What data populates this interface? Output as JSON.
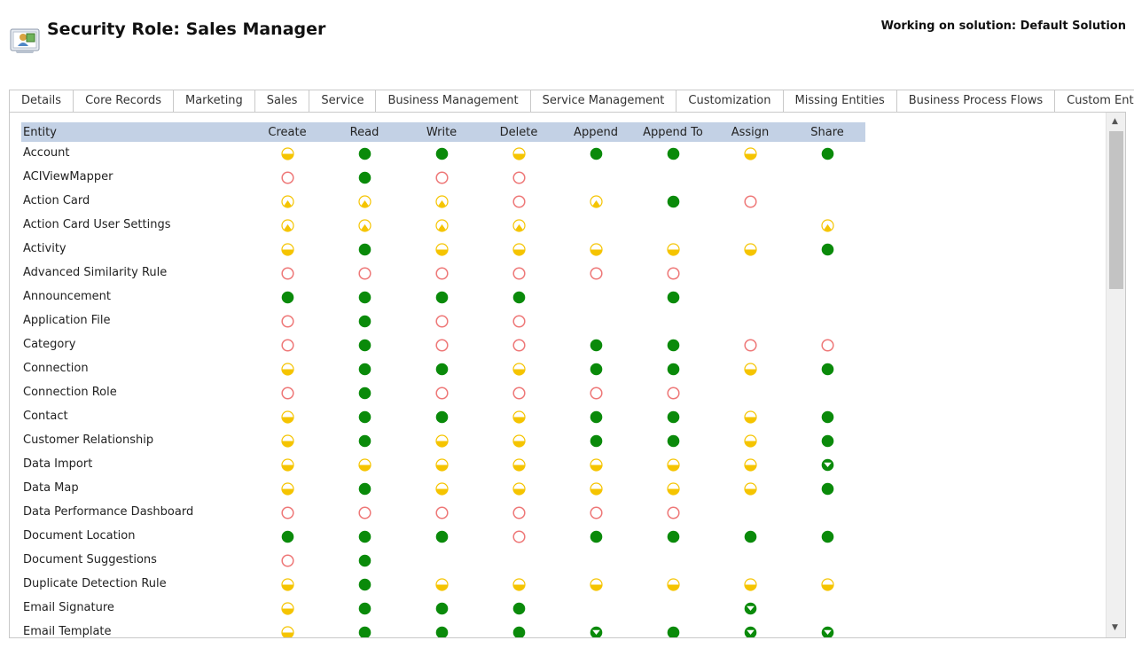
{
  "header": {
    "title": "Security Role: Sales Manager",
    "solution": "Working on solution: Default Solution"
  },
  "tabs": [
    {
      "label": "Details",
      "active": false
    },
    {
      "label": "Core Records",
      "active": true
    },
    {
      "label": "Marketing",
      "active": false
    },
    {
      "label": "Sales",
      "active": false
    },
    {
      "label": "Service",
      "active": false
    },
    {
      "label": "Business Management",
      "active": false
    },
    {
      "label": "Service Management",
      "active": false
    },
    {
      "label": "Customization",
      "active": false
    },
    {
      "label": "Missing Entities",
      "active": false
    },
    {
      "label": "Business Process Flows",
      "active": false
    },
    {
      "label": "Custom Entities",
      "active": false
    }
  ],
  "grid": {
    "columns": [
      "Entity",
      "Create",
      "Read",
      "Write",
      "Delete",
      "Append",
      "Append To",
      "Assign",
      "Share"
    ],
    "legend_colors": {
      "organization": "#0a8a0a",
      "parent_child": "#0a8a0a",
      "business_unit": "#f5c400",
      "user": "#f5c400",
      "none": "#ee7777"
    },
    "rows": [
      {
        "entity": "Account",
        "levels": [
          "business_unit",
          "organization",
          "organization",
          "business_unit",
          "organization",
          "organization",
          "business_unit",
          "organization"
        ]
      },
      {
        "entity": "ACIViewMapper",
        "levels": [
          "none",
          "organization",
          "none",
          "none",
          "",
          "",
          "",
          ""
        ]
      },
      {
        "entity": "Action Card",
        "levels": [
          "user",
          "user",
          "user",
          "none",
          "user",
          "organization",
          "none",
          ""
        ]
      },
      {
        "entity": "Action Card User Settings",
        "levels": [
          "user",
          "user",
          "user",
          "user",
          "",
          "",
          "",
          "user"
        ]
      },
      {
        "entity": "Activity",
        "levels": [
          "business_unit",
          "organization",
          "business_unit",
          "business_unit",
          "business_unit",
          "business_unit",
          "business_unit",
          "organization"
        ]
      },
      {
        "entity": "Advanced Similarity Rule",
        "levels": [
          "none",
          "none",
          "none",
          "none",
          "none",
          "none",
          "",
          ""
        ]
      },
      {
        "entity": "Announcement",
        "levels": [
          "organization",
          "organization",
          "organization",
          "organization",
          "",
          "organization",
          "",
          ""
        ]
      },
      {
        "entity": "Application File",
        "levels": [
          "none",
          "organization",
          "none",
          "none",
          "",
          "",
          "",
          ""
        ]
      },
      {
        "entity": "Category",
        "levels": [
          "none",
          "organization",
          "none",
          "none",
          "organization",
          "organization",
          "none",
          "none"
        ]
      },
      {
        "entity": "Connection",
        "levels": [
          "business_unit",
          "organization",
          "organization",
          "business_unit",
          "organization",
          "organization",
          "business_unit",
          "organization"
        ]
      },
      {
        "entity": "Connection Role",
        "levels": [
          "none",
          "organization",
          "none",
          "none",
          "none",
          "none",
          "",
          ""
        ]
      },
      {
        "entity": "Contact",
        "levels": [
          "business_unit",
          "organization",
          "organization",
          "business_unit",
          "organization",
          "organization",
          "business_unit",
          "organization"
        ]
      },
      {
        "entity": "Customer Relationship",
        "levels": [
          "business_unit",
          "organization",
          "business_unit",
          "business_unit",
          "organization",
          "organization",
          "business_unit",
          "organization"
        ]
      },
      {
        "entity": "Data Import",
        "levels": [
          "business_unit",
          "business_unit",
          "business_unit",
          "business_unit",
          "business_unit",
          "business_unit",
          "business_unit",
          "parent_child"
        ]
      },
      {
        "entity": "Data Map",
        "levels": [
          "business_unit",
          "organization",
          "business_unit",
          "business_unit",
          "business_unit",
          "business_unit",
          "business_unit",
          "organization"
        ]
      },
      {
        "entity": "Data Performance Dashboard",
        "levels": [
          "none",
          "none",
          "none",
          "none",
          "none",
          "none",
          "",
          ""
        ]
      },
      {
        "entity": "Document Location",
        "levels": [
          "organization",
          "organization",
          "organization",
          "none",
          "organization",
          "organization",
          "organization",
          "organization"
        ]
      },
      {
        "entity": "Document Suggestions",
        "levels": [
          "none",
          "organization",
          "",
          "",
          "",
          "",
          "",
          ""
        ]
      },
      {
        "entity": "Duplicate Detection Rule",
        "levels": [
          "business_unit",
          "organization",
          "business_unit",
          "business_unit",
          "business_unit",
          "business_unit",
          "business_unit",
          "business_unit"
        ]
      },
      {
        "entity": "Email Signature",
        "levels": [
          "business_unit",
          "organization",
          "organization",
          "organization",
          "",
          "",
          "parent_child",
          ""
        ]
      },
      {
        "entity": "Email Template",
        "levels": [
          "business_unit",
          "organization",
          "organization",
          "organization",
          "parent_child",
          "organization",
          "parent_child",
          "parent_child"
        ]
      }
    ]
  }
}
